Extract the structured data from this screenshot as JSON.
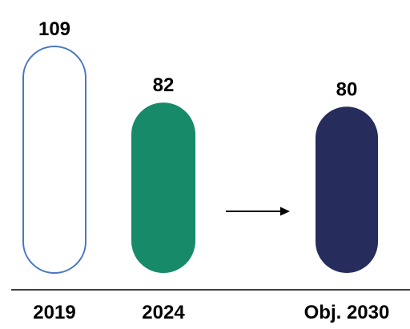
{
  "chart_data": {
    "type": "bar",
    "categories": [
      "2019",
      "2024",
      "Obj. 2030"
    ],
    "values": [
      109,
      82,
      80
    ],
    "value_labels": [
      "109",
      "82",
      "80"
    ],
    "bar_styles": [
      "outline",
      "filled",
      "filled"
    ],
    "colors": {
      "bar_2019_stroke": "#4a78c2",
      "bar_2024_fill": "#178a6a",
      "bar_2030_fill": "#262c5c",
      "arrow": "#000000",
      "baseline": "#000000",
      "text": "#000000"
    },
    "arrow_between": [
      "2024",
      "Obj. 2030"
    ],
    "ylim": [
      0,
      109
    ],
    "grid": false,
    "legend": "none"
  }
}
